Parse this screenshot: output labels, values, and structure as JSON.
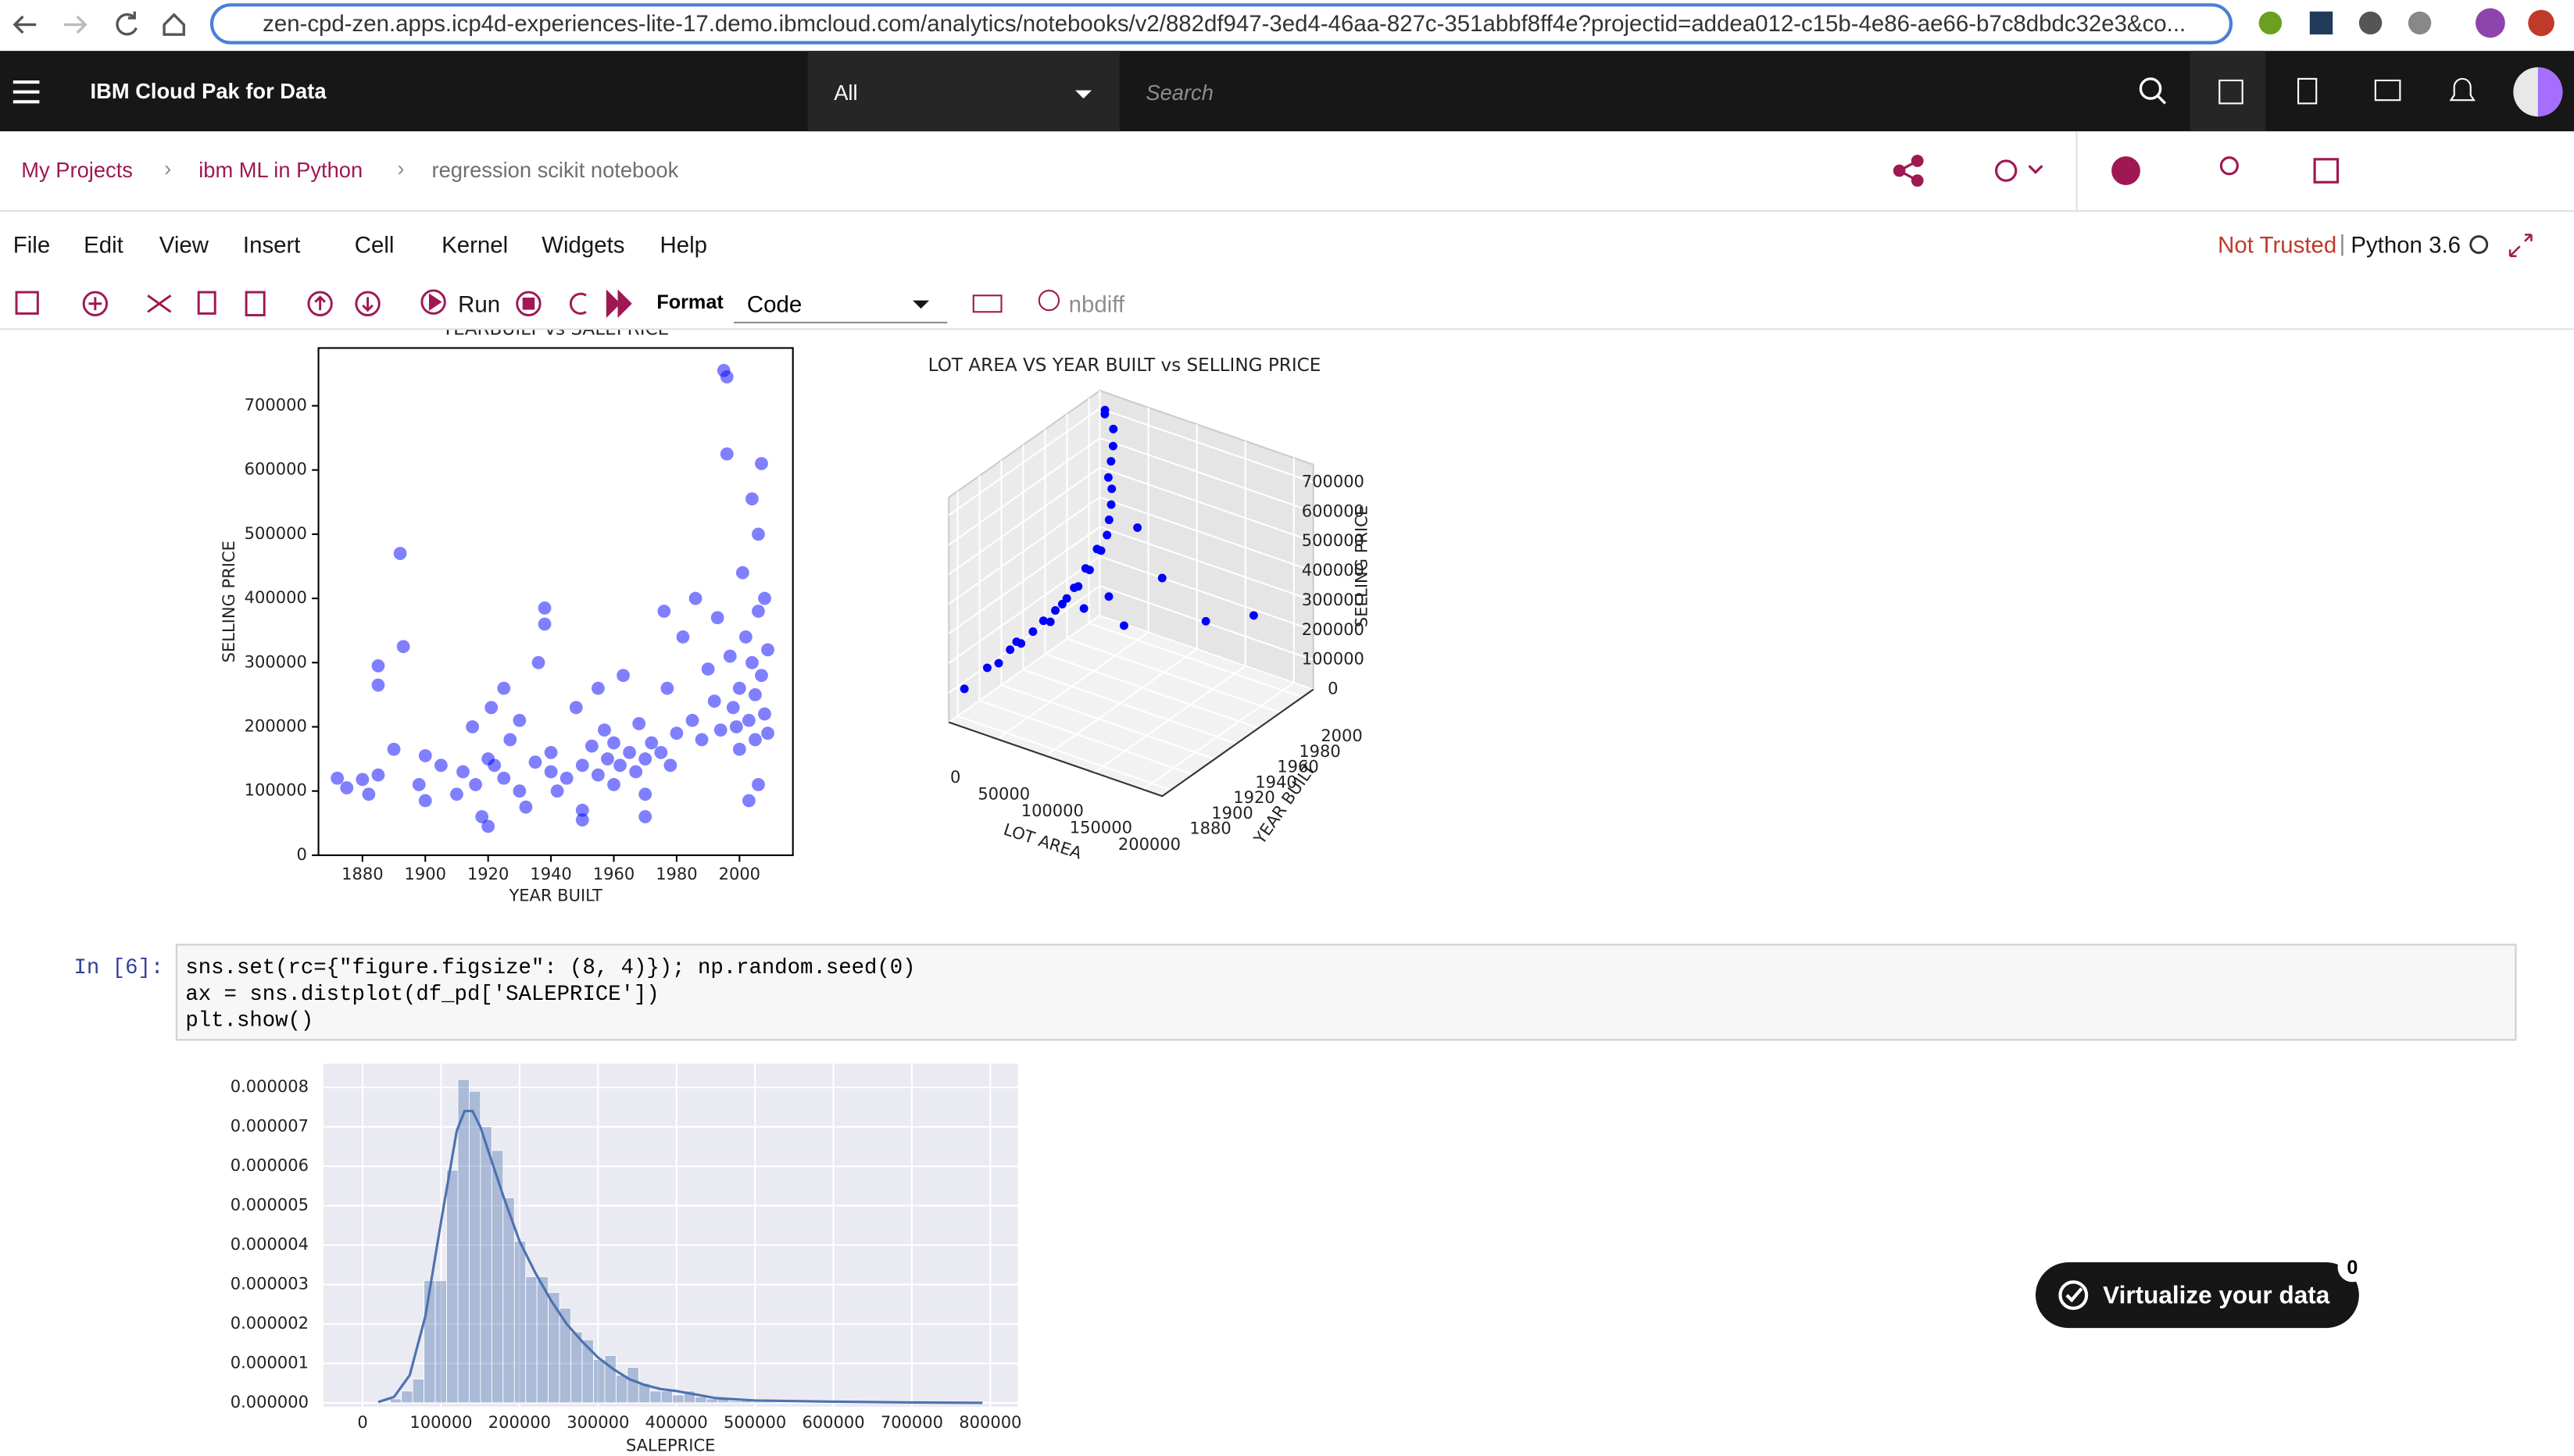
{
  "browser": {
    "url": "zen-cpd-zen.apps.icp4d-experiences-lite-17.demo.ibmcloud.com/analytics/notebooks/v2/882df947-3ed4-46aa-827c-351abbf8ff4e?projectid=addea012-c15b-4e86-ae66-b7c8dbdc32e3&co..."
  },
  "header": {
    "brand": "IBM Cloud Pak for Data",
    "scope": "All",
    "search_placeholder": "Search"
  },
  "breadcrumbs": [
    "My Projects",
    "ibm ML in Python",
    "regression scikit notebook"
  ],
  "menu": [
    "File",
    "Edit",
    "View",
    "Insert",
    "Cell",
    "Kernel",
    "Widgets",
    "Help"
  ],
  "kernel_status": {
    "trust": "Not Trusted",
    "kernel": "Python 3.6"
  },
  "toolbar": {
    "run": "Run",
    "format_label": "Format",
    "cell_type": "Code",
    "nbdiff": "nbdiff"
  },
  "cell": {
    "prompt": "In [6]:",
    "code": [
      "sns.set(rc={\"figure.figsize\": (8, 4)}); np.random.seed(0)",
      "ax = sns.distplot(df_pd['SALEPRICE'])",
      "plt.show()"
    ]
  },
  "promo": {
    "label": "Virtualize your data",
    "badge": 0
  },
  "chart_data": [
    {
      "type": "scatter",
      "title": "YEARBUILT vs SALEPRICE",
      "x_label": "YEAR BUILT",
      "y_label": "SELLING PRICE",
      "color": "#0000ff",
      "alpha": 0.5,
      "xlim": [
        1866,
        2017
      ],
      "ylim": [
        0,
        790000
      ],
      "xticks": [
        1880,
        1900,
        1920,
        1940,
        1960,
        1980,
        2000
      ],
      "yticks": [
        0,
        100000,
        200000,
        300000,
        400000,
        500000,
        600000,
        700000
      ],
      "x": [
        1872,
        1875,
        1880,
        1882,
        1885,
        1885,
        1885,
        1890,
        1892,
        1893,
        1898,
        1900,
        1900,
        1905,
        1910,
        1912,
        1915,
        1916,
        1918,
        1920,
        1920,
        1921,
        1922,
        1925,
        1925,
        1927,
        1930,
        1930,
        1932,
        1935,
        1936,
        1938,
        1938,
        1940,
        1940,
        1942,
        1945,
        1948,
        1950,
        1950,
        1953,
        1955,
        1955,
        1957,
        1958,
        1960,
        1960,
        1962,
        1963,
        1965,
        1967,
        1968,
        1970,
        1970,
        1972,
        1975,
        1976,
        1977,
        1978,
        1980,
        1982,
        1985,
        1986,
        1988,
        1990,
        1992,
        1993,
        1994,
        1995,
        1996,
        1996,
        1997,
        1998,
        1999,
        2000,
        2000,
        2001,
        2002,
        2003,
        2004,
        2004,
        2005,
        2005,
        2006,
        2006,
        2007,
        2007,
        2008,
        2008,
        2009,
        2006,
        2003,
        2009,
        1950,
        1970
      ],
      "values": [
        120000,
        105000,
        118000,
        95000,
        125000,
        265000,
        295000,
        165000,
        470000,
        325000,
        110000,
        155000,
        85000,
        140000,
        95000,
        130000,
        200000,
        110000,
        60000,
        150000,
        45000,
        230000,
        140000,
        120000,
        260000,
        180000,
        100000,
        210000,
        75000,
        145000,
        300000,
        385000,
        360000,
        130000,
        160000,
        100000,
        120000,
        230000,
        140000,
        55000,
        170000,
        125000,
        260000,
        195000,
        150000,
        110000,
        175000,
        140000,
        280000,
        160000,
        130000,
        205000,
        150000,
        95000,
        175000,
        160000,
        380000,
        260000,
        140000,
        190000,
        340000,
        210000,
        400000,
        180000,
        290000,
        240000,
        370000,
        195000,
        755000,
        745000,
        625000,
        310000,
        230000,
        200000,
        260000,
        165000,
        440000,
        340000,
        210000,
        555000,
        300000,
        250000,
        180000,
        500000,
        380000,
        280000,
        610000,
        220000,
        400000,
        320000,
        110000,
        85000,
        190000,
        70000,
        60000
      ]
    },
    {
      "type": "scatter3d",
      "title": "LOT AREA VS YEAR BUILT vs SELLING PRICE",
      "x_label": "LOT AREA",
      "y_label": "YEAR BUILT",
      "z_label": "SELLING PRICE",
      "color": "#0000ff",
      "xlim": [
        0,
        220000
      ],
      "ylim": [
        1872,
        2010
      ],
      "zlim": [
        0,
        760000
      ],
      "xticks": [
        0,
        50000,
        100000,
        150000,
        200000
      ],
      "yticks": [
        1880,
        1900,
        1920,
        1940,
        1960,
        1980,
        2000
      ],
      "zticks": [
        0,
        100000,
        200000,
        300000,
        400000,
        500000,
        600000,
        700000
      ],
      "x": [
        8000,
        9000,
        10000,
        9500,
        10500,
        11000,
        11500,
        12000,
        12500,
        13000,
        14000,
        15000,
        14500,
        15500,
        16000,
        17000,
        15000,
        21000,
        22000,
        7000,
        8500,
        9000,
        10000,
        11000,
        12000,
        13000,
        13500,
        14000,
        40000,
        60000,
        70000,
        115000,
        160000,
        215000,
        50000
      ],
      "y": [
        1900,
        1920,
        1940,
        1950,
        1960,
        1970,
        1980,
        1990,
        2000,
        2005,
        2006,
        2007,
        2008,
        2004,
        2006,
        2007,
        2009,
        1996,
        1995,
        1880,
        1910,
        1930,
        1925,
        1955,
        1965,
        1975,
        1985,
        1995,
        1960,
        1965,
        1970,
        1965,
        1965,
        1960,
        2000
      ],
      "z": [
        120000,
        130000,
        140000,
        150000,
        160000,
        175000,
        190000,
        220000,
        260000,
        300000,
        350000,
        400000,
        450000,
        500000,
        550000,
        600000,
        650000,
        755000,
        745000,
        100000,
        110000,
        125000,
        145000,
        135000,
        170000,
        200000,
        240000,
        280000,
        200000,
        250000,
        150000,
        375000,
        280000,
        375000,
        380000
      ]
    },
    {
      "type": "histogram",
      "x_label": "SALEPRICE",
      "color": "#4c72b0",
      "alpha": 0.4,
      "grid": true,
      "background": "#eaeaf2",
      "xlim": [
        -50000,
        835000
      ],
      "ylim": [
        -1e-07,
        8.6e-06
      ],
      "xticks": [
        0,
        100000,
        200000,
        300000,
        400000,
        500000,
        600000,
        700000,
        800000
      ],
      "yticks": [
        {
          "value": 0,
          "label": "0.000000"
        },
        {
          "value": 1e-06,
          "label": "0.000001"
        },
        {
          "value": 2e-06,
          "label": "0.000002"
        },
        {
          "value": 3e-06,
          "label": "0.000003"
        },
        {
          "value": 4e-06,
          "label": "0.000004"
        },
        {
          "value": 5e-06,
          "label": "0.000005"
        },
        {
          "value": 6e-06,
          "label": "0.000006"
        },
        {
          "value": 7e-06,
          "label": "0.000007"
        },
        {
          "value": 8e-06,
          "label": "0.000008"
        }
      ],
      "bins": [
        35000,
        49400,
        63800,
        78200,
        92600,
        107000,
        121400,
        135800,
        150200,
        164600,
        179000,
        193400,
        207800,
        222200,
        236600,
        251000,
        265400,
        279800,
        294200,
        308600,
        323000,
        337400,
        351800,
        366200,
        380600,
        395000,
        409400,
        423800,
        438200,
        452600,
        467000,
        481400,
        495800,
        510200,
        524600,
        539000,
        553400,
        567800,
        582200,
        596600,
        611000,
        625400,
        639800,
        654200,
        668600,
        683000,
        697400,
        711800,
        726200,
        740600,
        755000
      ],
      "values": [
        1e-07,
        3e-07,
        6e-07,
        3.1e-06,
        3.1e-06,
        5.9e-06,
        8.2e-06,
        7.9e-06,
        7e-06,
        6.4e-06,
        5.2e-06,
        4.1e-06,
        3.2e-06,
        3.2e-06,
        2.8e-06,
        2.4e-06,
        1.8e-06,
        1.6e-06,
        1.1e-06,
        1.2e-06,
        7e-07,
        9e-07,
        5e-07,
        3e-07,
        3e-07,
        2e-07,
        3e-07,
        1.5e-07,
        1e-07,
        1e-07,
        5e-08,
        5e-08,
        3e-08,
        3e-08,
        2e-08,
        2e-08,
        2e-08,
        2e-08,
        1e-08,
        1e-08,
        1e-08,
        1e-08,
        0,
        0,
        0,
        0,
        0,
        0,
        0,
        1e-08
      ],
      "kde": {
        "color": "#4c72b0",
        "x": [
          20000,
          40000,
          60000,
          80000,
          100000,
          120000,
          130000,
          140000,
          150000,
          160000,
          180000,
          200000,
          220000,
          240000,
          260000,
          280000,
          300000,
          320000,
          340000,
          360000,
          380000,
          400000,
          450000,
          500000,
          600000,
          700000,
          790000
        ],
        "values": [
          2e-08,
          1.5e-07,
          7e-07,
          2.2e-06,
          4.6e-06,
          6.9e-06,
          7.4e-06,
          7.4e-06,
          7e-06,
          6.4e-06,
          5.2e-06,
          4.1e-06,
          3.3e-06,
          2.6e-06,
          2e-06,
          1.55e-06,
          1.15e-06,
          8.5e-07,
          6e-07,
          4.5e-07,
          3.5e-07,
          3e-07,
          1.2e-07,
          6e-08,
          3e-08,
          1e-08,
          0
        ]
      }
    }
  ]
}
